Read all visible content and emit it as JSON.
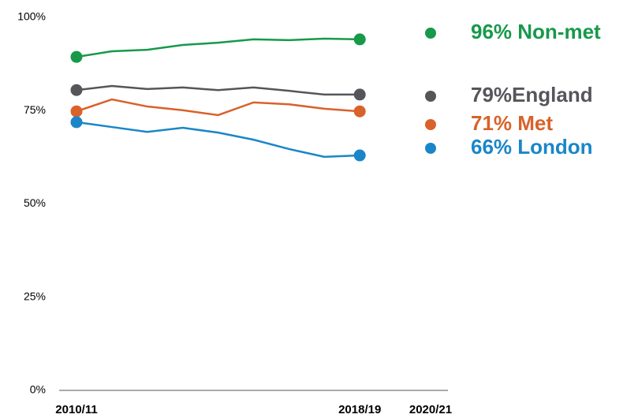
{
  "chart_data": {
    "type": "line",
    "categories": [
      "2010/11",
      null,
      null,
      null,
      null,
      null,
      null,
      null,
      "2018/19",
      null,
      "2020/21"
    ],
    "ylim": [
      0,
      100
    ],
    "yticks": [
      {
        "value": 0,
        "label": "0%"
      },
      {
        "value": 25,
        "label": "25%"
      },
      {
        "value": 50,
        "label": "50%"
      },
      {
        "value": 75,
        "label": "75%"
      },
      {
        "value": 100,
        "label": "100%"
      }
    ],
    "series": [
      {
        "name": "96% Non-met",
        "color": "#17994a",
        "values": [
          89.4,
          90.9,
          91.3,
          92.6,
          93.2,
          94.1,
          93.9,
          94.3,
          94.1,
          null,
          null
        ]
      },
      {
        "name": "79%England",
        "color": "#55565a",
        "values": [
          80.5,
          81.6,
          80.8,
          81.2,
          80.5,
          81.2,
          80.3,
          79.3,
          79.3,
          null,
          null
        ]
      },
      {
        "name": "71% Met",
        "color": "#d8622a",
        "values": [
          74.8,
          78.0,
          76.1,
          75.1,
          73.8,
          77.2,
          76.7,
          75.5,
          74.8,
          null,
          null
        ]
      },
      {
        "name": "66% London",
        "color": "#1a86c8",
        "values": [
          71.9,
          70.6,
          69.3,
          70.4,
          69.1,
          67.2,
          64.7,
          62.6,
          63.0,
          null,
          null
        ]
      }
    ]
  }
}
